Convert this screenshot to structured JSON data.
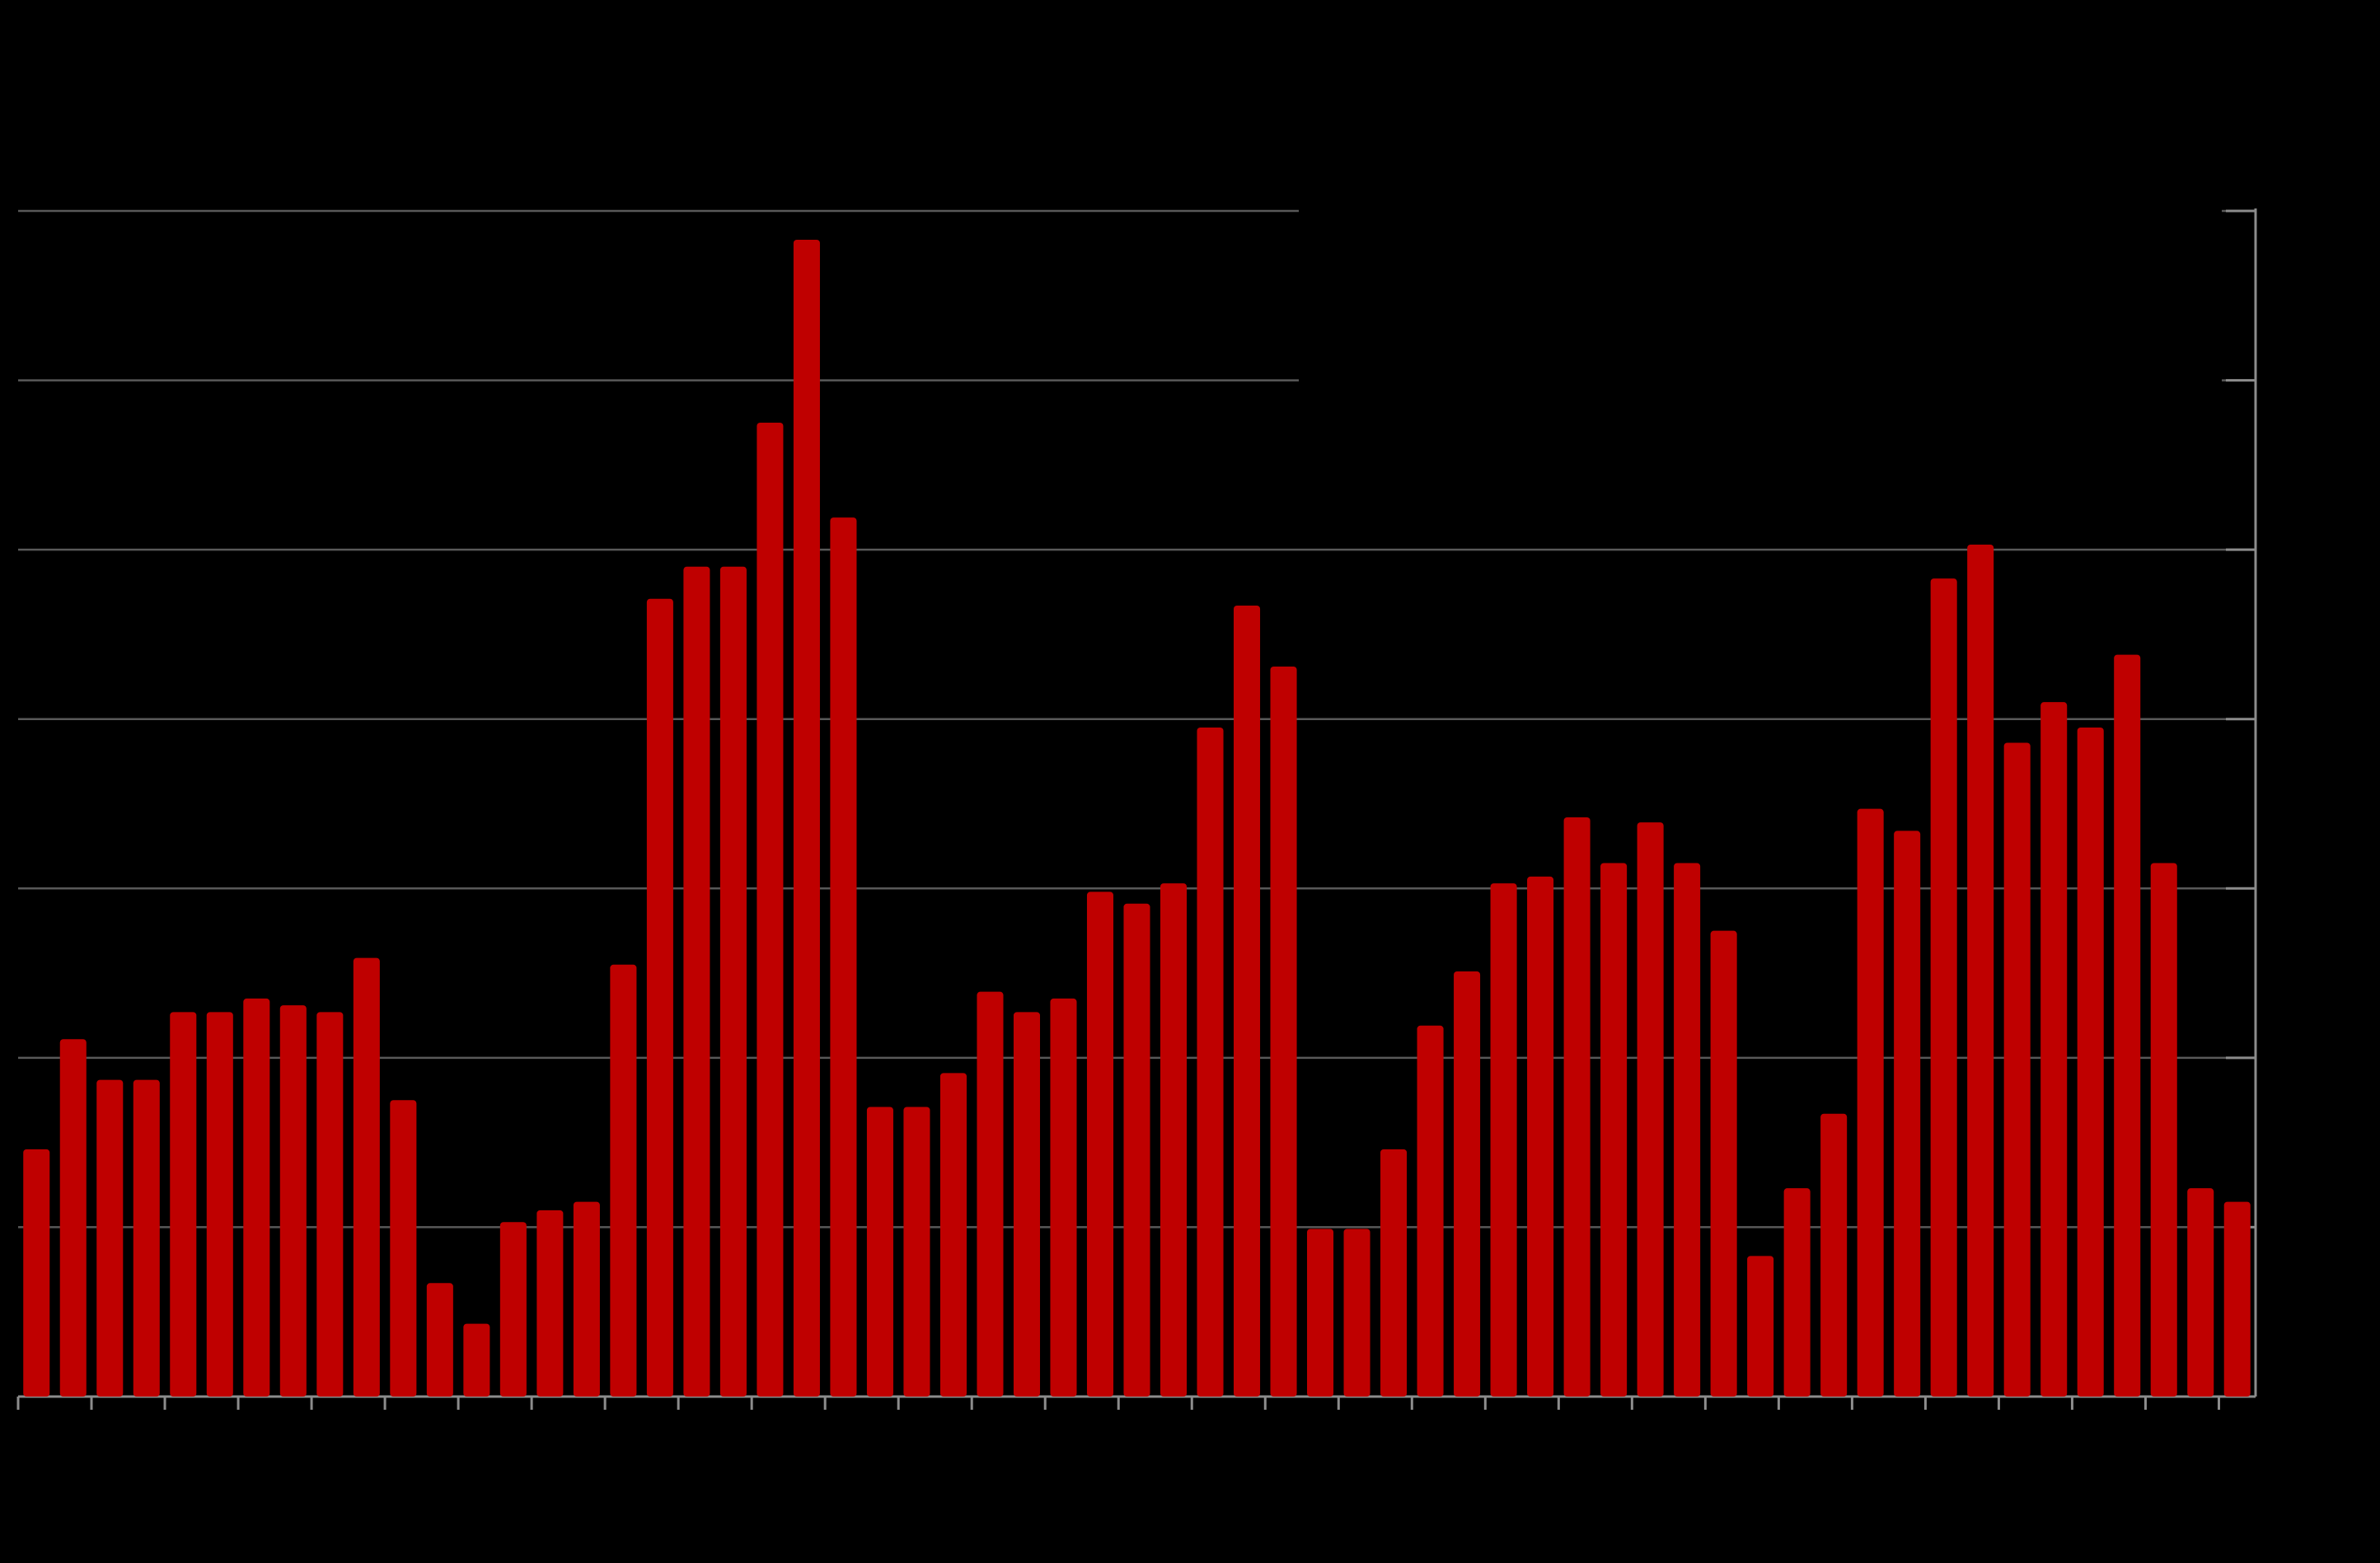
{
  "chart_data": {
    "type": "bar",
    "categories": [
      null,
      null,
      null,
      null,
      null,
      null,
      null,
      null,
      null,
      null,
      null,
      null,
      null,
      null,
      null,
      null,
      null,
      null,
      null,
      null,
      null,
      null,
      null,
      null,
      null,
      null,
      null,
      null,
      null,
      null,
      null,
      null,
      null,
      null,
      null,
      null,
      null,
      null,
      null,
      null,
      null,
      null,
      null,
      null,
      null,
      null,
      null,
      null,
      null,
      null,
      null,
      null,
      null,
      null,
      null,
      null,
      null,
      null,
      null,
      null,
      null
    ],
    "values": [
      1.46,
      2.11,
      1.87,
      1.87,
      2.27,
      2.27,
      2.35,
      2.31,
      2.27,
      2.59,
      1.75,
      0.67,
      0.43,
      1.03,
      1.1,
      1.15,
      2.55,
      4.71,
      4.9,
      4.9,
      5.75,
      6.83,
      5.19,
      1.71,
      1.71,
      1.91,
      2.39,
      2.27,
      2.35,
      2.98,
      2.91,
      3.03,
      3.95,
      4.67,
      4.31,
      0.99,
      0.99,
      1.46,
      2.19,
      2.51,
      3.03,
      3.07,
      3.42,
      3.15,
      3.39,
      3.15,
      2.75,
      0.83,
      1.23,
      1.67,
      3.47,
      3.34,
      4.83,
      5.03,
      3.86,
      4.1,
      3.95,
      4.38,
      3.15,
      1.23,
      1.15
    ],
    "color": "#bf0000",
    "ylim": [
      0,
      7
    ],
    "yticks": [
      0,
      1,
      2,
      3,
      4,
      5,
      6,
      7
    ],
    "grid": true
  }
}
